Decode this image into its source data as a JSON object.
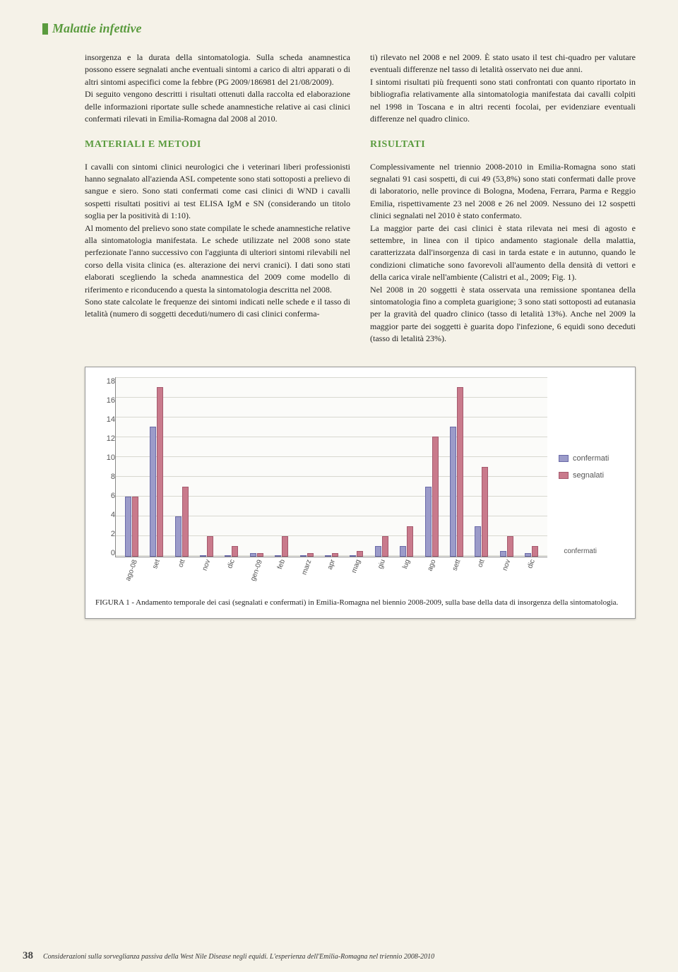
{
  "section_header": "Malattie infettive",
  "col1": {
    "p1": "insorgenza e la durata della sintomatologia. Sulla scheda anamnestica possono essere segnalati anche eventuali sintomi a carico di altri apparati o di altri sintomi aspecifici come la febbre (PG 2009/186981 del 21/08/2009).",
    "p2": "Di seguito vengono descritti i risultati ottenuti dalla raccolta ed elaborazione delle informazioni riportate sulle schede anamnestiche relative ai casi clinici confermati rilevati in Emilia-Romagna dal 2008 al 2010.",
    "h1": "MATERIALI E METODI",
    "p3": "I cavalli con sintomi clinici neurologici che i veterinari liberi professionisti hanno segnalato all'azienda ASL competente sono stati sottoposti a prelievo di sangue e siero. Sono stati confermati come casi clinici di WND i cavalli sospetti risultati positivi ai test ELISA IgM e SN (considerando un titolo soglia per la positività di 1:10).",
    "p4": "Al momento del prelievo sono state compilate le schede anamnestiche relative alla sintomatologia manifestata. Le schede utilizzate nel 2008 sono state perfezionate l'anno successivo con l'aggiunta di ulteriori sintomi rilevabili nel corso della visita clinica (es. alterazione dei nervi cranici). I dati sono stati elaborati scegliendo la scheda anamnestica del 2009 come modello di riferimento e riconducendo a questa la sintomatologia descritta nel 2008.",
    "p5": "Sono state calcolate le frequenze dei sintomi indicati nelle schede e il tasso di letalità (numero di soggetti deceduti/numero di casi clinici conferma-"
  },
  "col2": {
    "p1": "ti) rilevato nel 2008 e nel 2009. È stato usato il test chi-quadro per valutare eventuali differenze nel tasso di letalità osservato nei due anni.",
    "p2": "I sintomi risultati più frequenti sono stati confrontati con quanto riportato in bibliografia relativamente alla sintomatologia manifestata dai cavalli colpiti nel 1998 in Toscana e in altri recenti focolai, per evidenziare eventuali differenze nel quadro clinico.",
    "h1": "RISULTATI",
    "p3": "Complessivamente nel triennio 2008-2010 in Emilia-Romagna sono stati segnalati 91 casi sospetti, di cui 49 (53,8%) sono stati confermati dalle prove di laboratorio, nelle province di Bologna, Modena, Ferrara, Parma e Reggio Emilia, rispettivamente 23 nel 2008 e 26 nel 2009. Nessuno dei 12 sospetti clinici segnalati nel 2010 è stato confermato.",
    "p4": "La maggior parte dei casi clinici è stata rilevata nei mesi di agosto e settembre, in linea con il tipico andamento stagionale della malattia, caratterizzata dall'insorgenza di casi in tarda estate e in autunno, quando le condizioni climatiche sono favorevoli all'aumento della densità di vettori e della carica virale nell'ambiente (Calistri et al., 2009; Fig. 1).",
    "p5": "Nel 2008 in 20 soggetti è stata osservata una remissione spontanea della sintomatologia fino a completa guarigione; 3 sono stati sottoposti ad eutanasia per la gravità del quadro clinico (tasso di letalità 13%). Anche nel 2009 la maggior parte dei soggetti è guarita dopo l'infezione, 6 equidi sono deceduti (tasso di letalità 23%)."
  },
  "chart": {
    "type": "bar",
    "y_ticks": [
      18,
      16,
      14,
      12,
      10,
      8,
      6,
      4,
      2,
      0
    ],
    "ymax": 18,
    "categories": [
      "ago-08",
      "set",
      "ott",
      "nov",
      "dic",
      "gen-09",
      "feb",
      "marz",
      "apr",
      "mag",
      "giu",
      "lug",
      "ago",
      "sett",
      "ott",
      "nov",
      "dic"
    ],
    "series": [
      {
        "name": "confermati",
        "color": "#9b9bc9",
        "border": "#6a6aa8",
        "values": [
          6,
          13,
          4,
          0,
          0,
          0.3,
          0,
          0,
          0,
          0,
          1,
          1,
          7,
          13,
          3,
          0.5,
          0.3
        ]
      },
      {
        "name": "segnalati",
        "color": "#c97a8c",
        "border": "#a55a6e",
        "values": [
          6,
          17,
          7,
          2,
          1,
          0.3,
          2,
          0.3,
          0.3,
          0.5,
          2,
          3,
          12,
          17,
          9,
          2,
          1
        ]
      }
    ],
    "legend_labels": [
      "confermati",
      "segnalati"
    ],
    "z_label": "confermati",
    "caption": "FIGURA 1 - Andamento temporale dei casi (segnalati e confermati) in Emilia-Romagna nel biennio 2008-2009, sulla base della data di insorgenza della sintomatologia."
  },
  "footer": {
    "page_number": "38",
    "running_title": "Considerazioni sulla sorveglianza passiva della West Nile Disease negli equidi. L'esperienza dell'Emilia-Romagna nel triennio 2008-2010"
  }
}
